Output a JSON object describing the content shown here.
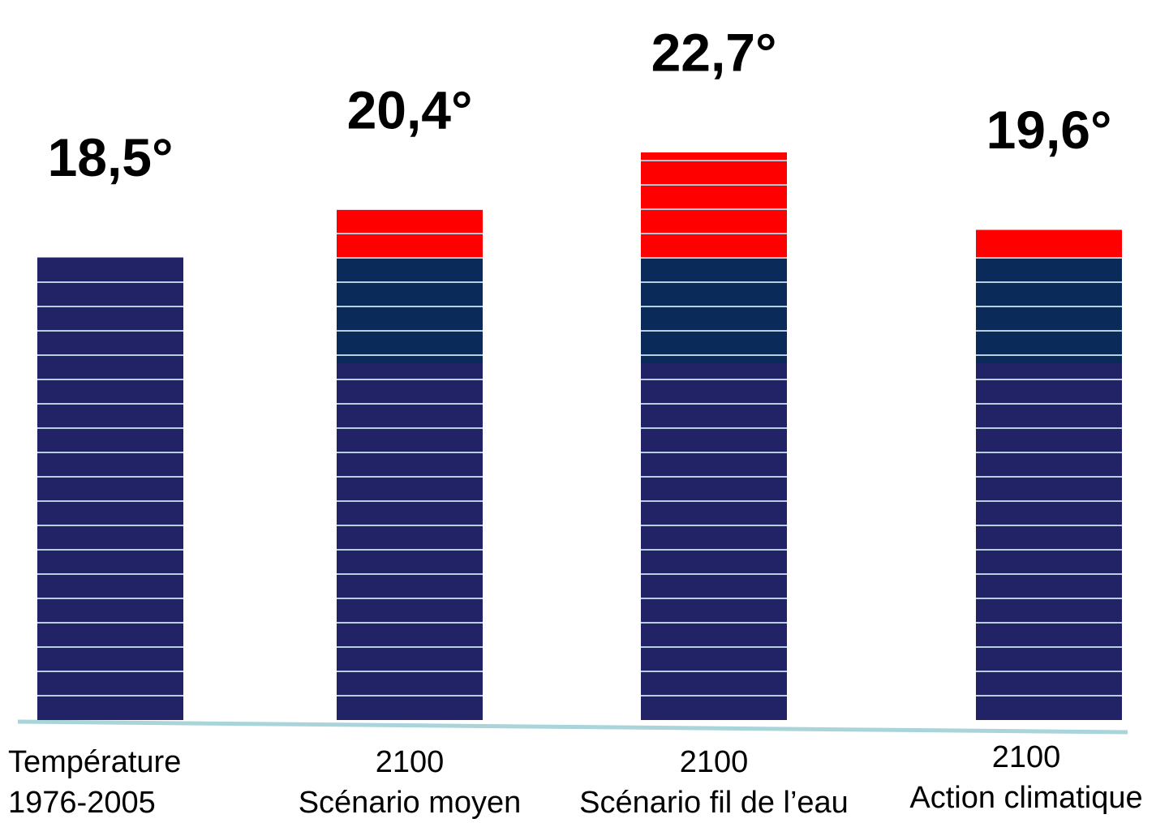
{
  "chart_data": {
    "type": "bar",
    "categories": [
      [
        "Température",
        "1976-2005"
      ],
      [
        "2100",
        "Scénario moyen"
      ],
      [
        "2100",
        "Scénario fil de l’eau"
      ],
      [
        "2100",
        "Action climatique"
      ]
    ],
    "values": [
      18.5,
      20.4,
      22.7,
      19.6
    ],
    "value_labels": [
      "18,5°",
      "20,4°",
      "22,7°",
      "19,6°"
    ],
    "color": "#222366",
    "increase_color": "#ff0000"
  }
}
